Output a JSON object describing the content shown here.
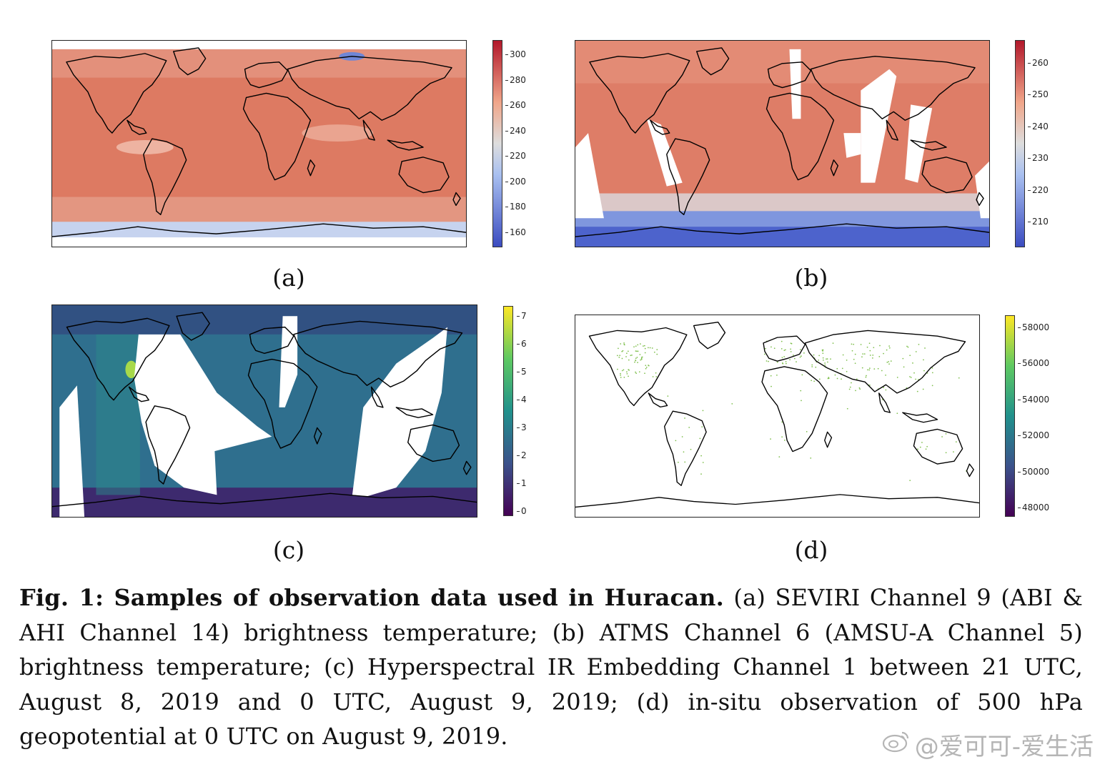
{
  "figure": {
    "panels": [
      {
        "id": "a",
        "label": "(a)",
        "colormap": "coolwarm",
        "colorbar_ticks": [
          "300",
          "280",
          "260",
          "240",
          "220",
          "200",
          "180",
          "160"
        ]
      },
      {
        "id": "b",
        "label": "(b)",
        "colormap": "coolwarm",
        "colorbar_ticks": [
          "260",
          "250",
          "240",
          "230",
          "220",
          "210"
        ]
      },
      {
        "id": "c",
        "label": "(c)",
        "colormap": "viridis",
        "colorbar_ticks": [
          "7",
          "6",
          "5",
          "4",
          "3",
          "2",
          "1",
          "0"
        ]
      },
      {
        "id": "d",
        "label": "(d)",
        "colormap": "viridis",
        "colorbar_ticks": [
          "58000",
          "56000",
          "54000",
          "52000",
          "50000",
          "48000"
        ]
      }
    ],
    "colors": {
      "coolwarm_top": "#b2182b",
      "coolwarm_mid": "#dddddd",
      "coolwarm_bottom": "#3b4cc0",
      "viridis_top": "#fde725",
      "viridis_bottom": "#440154",
      "coastline": "#000000"
    }
  },
  "caption": {
    "title": "Fig. 1: Samples of observation data used in Huracan.",
    "body": "(a) SEVIRI Channel 9 (ABI & AHI Channel 14) brightness temperature; (b) ATMS Channel 6 (AMSU-A Channel 5) brightness temperature; (c) Hyperspectral IR Embedding Channel 1 between 21 UTC, August 8, 2019 and 0 UTC, August 9, 2019; (d) in-situ observation of 500 hPa geopotential at 0 UTC on August 9, 2019."
  },
  "watermark": {
    "text": "@爱可可-爱生活",
    "icon": "weibo-icon"
  }
}
